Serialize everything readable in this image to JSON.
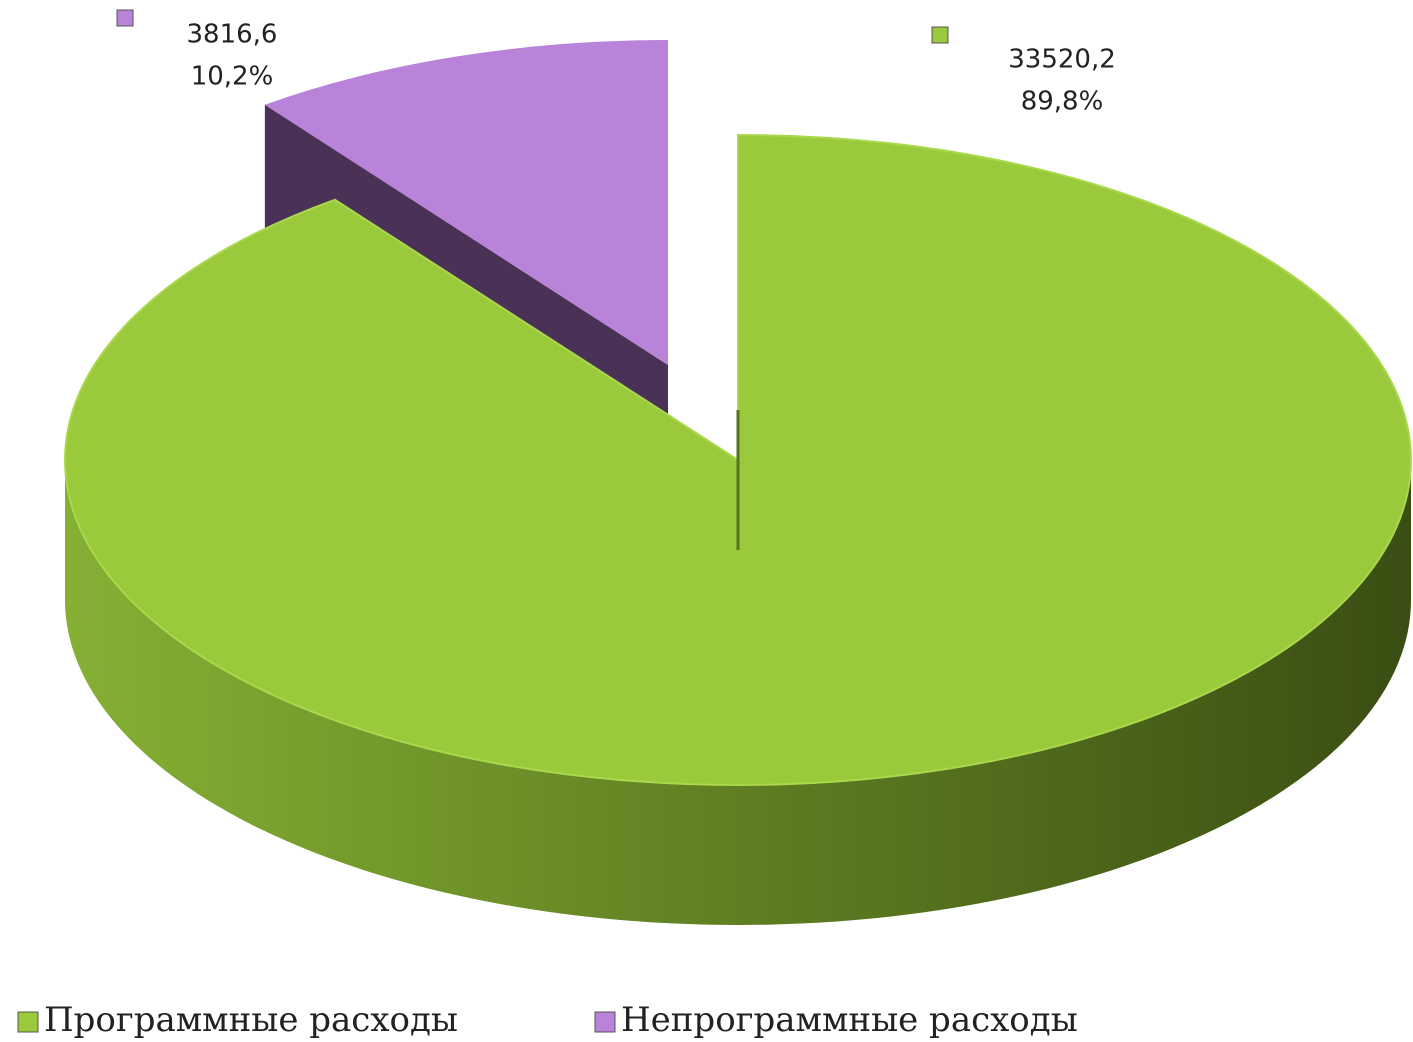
{
  "chart_data": {
    "type": "pie",
    "categories": [
      "Программные расходы",
      "Непрограммные расходы"
    ],
    "values": [
      33520.2,
      3816.6
    ],
    "value_labels": [
      "33520,2",
      "3816,6"
    ],
    "percentages": [
      89.8,
      10.2
    ],
    "percentage_labels": [
      "89,8%",
      "10,2%"
    ],
    "colors": [
      "#9ac93c",
      "#b883d8"
    ],
    "legend": "bottom"
  }
}
